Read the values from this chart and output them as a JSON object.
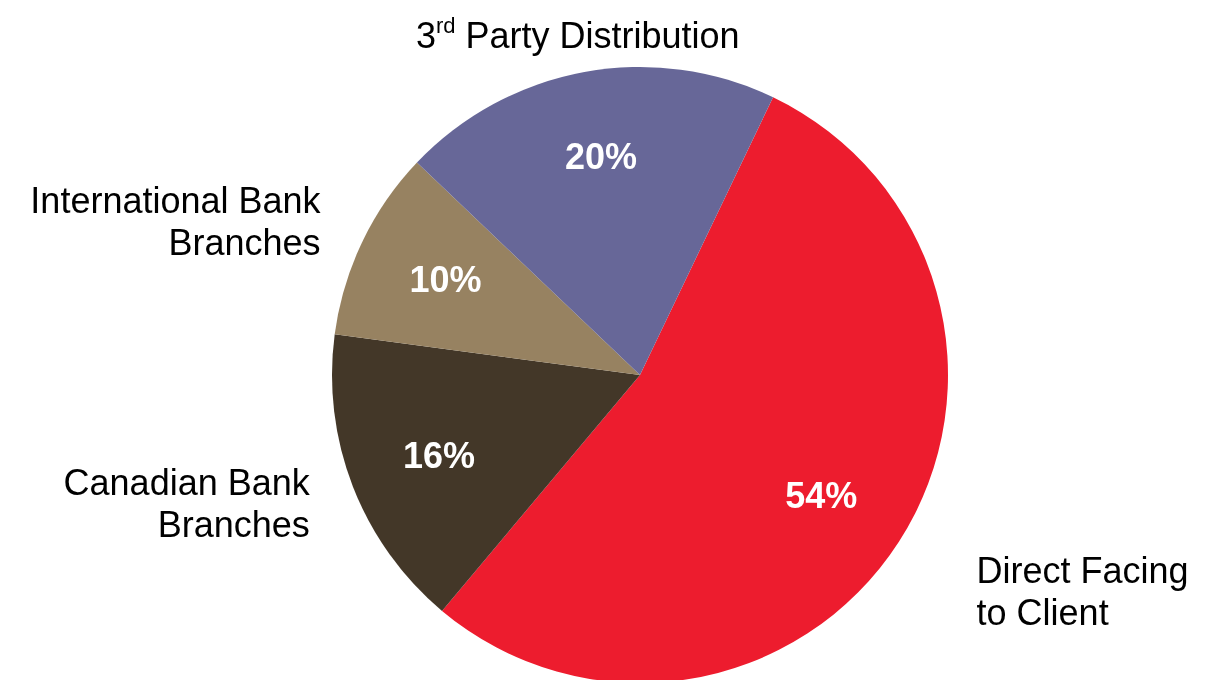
{
  "chart_data": {
    "type": "pie",
    "categories": [
      "Direct Facing to Client",
      "Canadian Bank Branches",
      "International Bank Branches",
      "3$^{rd}$ Party Distribution"
    ],
    "values": [
      54,
      16,
      10,
      20
    ],
    "colors": [
      "#ed1c2e",
      "#433728",
      "#978261",
      "#676798"
    ],
    "value_labels": [
      "54%",
      "16%",
      "10%",
      "20%"
    ],
    "legend": false
  }
}
